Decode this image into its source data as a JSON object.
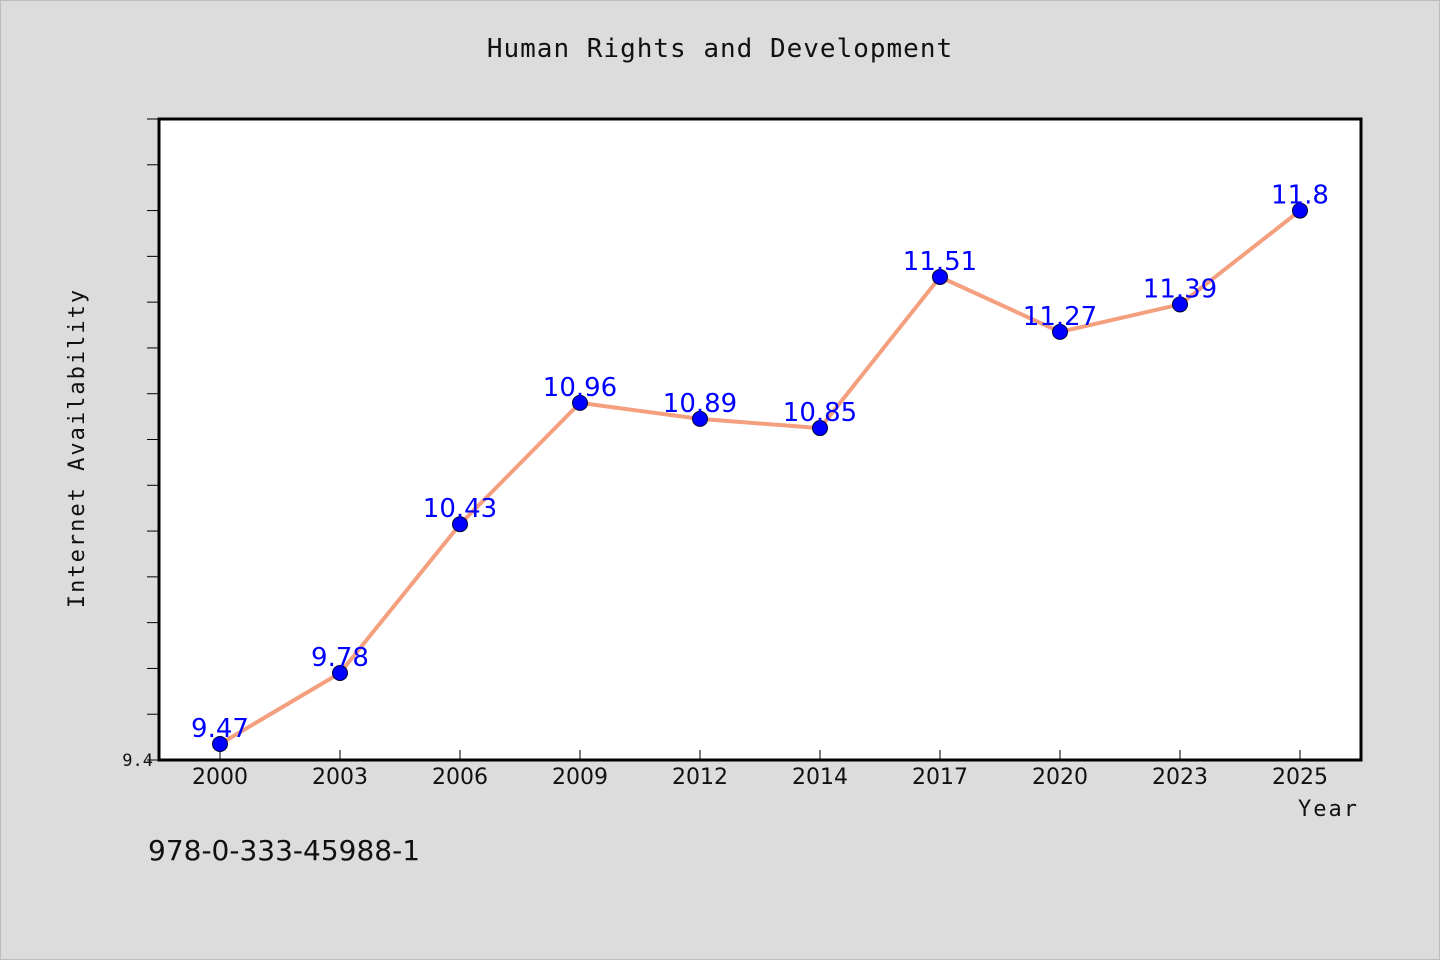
{
  "title": "Human Rights and Development",
  "footer_text": "978-0-333-45988-1",
  "colors": {
    "background": "#dcdcdc",
    "plot_background": "#ffffff",
    "line": "#f4a07f",
    "marker": "#0000ff",
    "data_label": "#0000ff"
  },
  "chart_data": {
    "type": "line",
    "title": "Human Rights and Development",
    "xlabel": "Year",
    "ylabel": "Internet Availability",
    "categories": [
      "2000",
      "2003",
      "2006",
      "2009",
      "2012",
      "2014",
      "2017",
      "2020",
      "2023",
      "2025"
    ],
    "series": [
      {
        "values": [
          9.47,
          9.78,
          10.43,
          10.96,
          10.89,
          10.85,
          11.51,
          11.27,
          11.39,
          11.8
        ]
      }
    ],
    "data_labels": [
      "9.47",
      "9.78",
      "10.43",
      "10.96",
      "10.89",
      "10.85",
      "11.51",
      "11.27",
      "11.39",
      "11.8"
    ],
    "ylim": [
      9.4,
      12.2
    ],
    "y_tick_label": "9.4",
    "y_minor_step": 0.2,
    "grid": false,
    "markers": true
  }
}
